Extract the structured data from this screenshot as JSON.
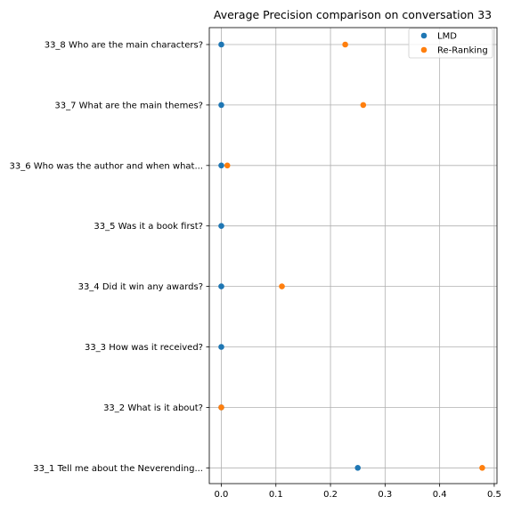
{
  "chart_data": {
    "type": "scatter",
    "title": "Average Precision comparison on conversation 33",
    "xlabel": "",
    "ylabel": "",
    "xlim": [
      -0.022,
      0.505
    ],
    "xticks": [
      "0.0",
      "0.1",
      "0.2",
      "0.3",
      "0.4",
      "0.5"
    ],
    "grid": true,
    "legend_position": "top-right",
    "categories": [
      "33_8 Who are the main characters?",
      "33_7 What are the main themes?",
      "33_6 Who was the author and when what...",
      "33_5 Was it a book first?",
      "33_4 Did it win any awards?",
      "33_3 How was it received?",
      "33_2 What is it about?",
      "33_1 Tell me about the Neverending..."
    ],
    "series": [
      {
        "name": "LMD",
        "color": "#1f77b4",
        "values": [
          0.0,
          0.0,
          0.0,
          0.0,
          0.0,
          0.0,
          0.0,
          0.25
        ]
      },
      {
        "name": "Re-Ranking",
        "color": "#ff7f0e",
        "values": [
          0.227,
          0.26,
          0.011,
          null,
          0.111,
          null,
          0.0,
          0.478
        ]
      }
    ]
  }
}
